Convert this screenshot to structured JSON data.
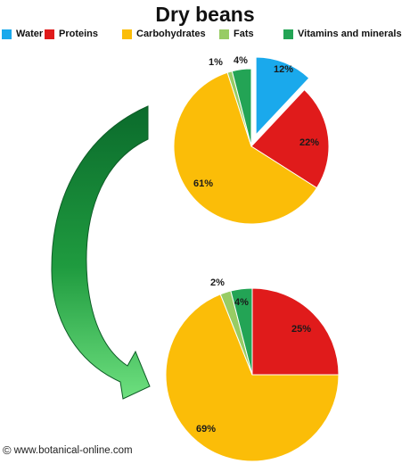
{
  "title": "Dry beans",
  "legend": [
    {
      "label": "Water",
      "color": "#1aa9ec"
    },
    {
      "label": "Proteins",
      "color": "#e01b1b"
    },
    {
      "label": "Carbohydrates",
      "color": "#fbbd08"
    },
    {
      "label": "Fats",
      "color": "#98cc64"
    },
    {
      "label": "Vitamins and minerals",
      "color": "#23a455"
    }
  ],
  "chart_data": [
    {
      "type": "pie",
      "title": "",
      "categories": [
        "Water",
        "Proteins",
        "Carbohydrates",
        "Fats",
        "Vitamins and minerals"
      ],
      "values": [
        12,
        22,
        61,
        1,
        4
      ],
      "labels": [
        "12%",
        "22%",
        "61%",
        "1%",
        "4%"
      ],
      "exploded": [
        "Water"
      ]
    },
    {
      "type": "pie",
      "title": "",
      "categories": [
        "Proteins",
        "Carbohydrates",
        "Fats",
        "Vitamins and minerals"
      ],
      "values": [
        25,
        69,
        2,
        4
      ],
      "labels": [
        "25%",
        "69%",
        "2%",
        "4%"
      ]
    }
  ],
  "arrow": {
    "icon": "curved-arrow-icon",
    "color": "#1f9b3f"
  },
  "credit": {
    "symbol": "©",
    "text": "www.botanical-online.com"
  }
}
